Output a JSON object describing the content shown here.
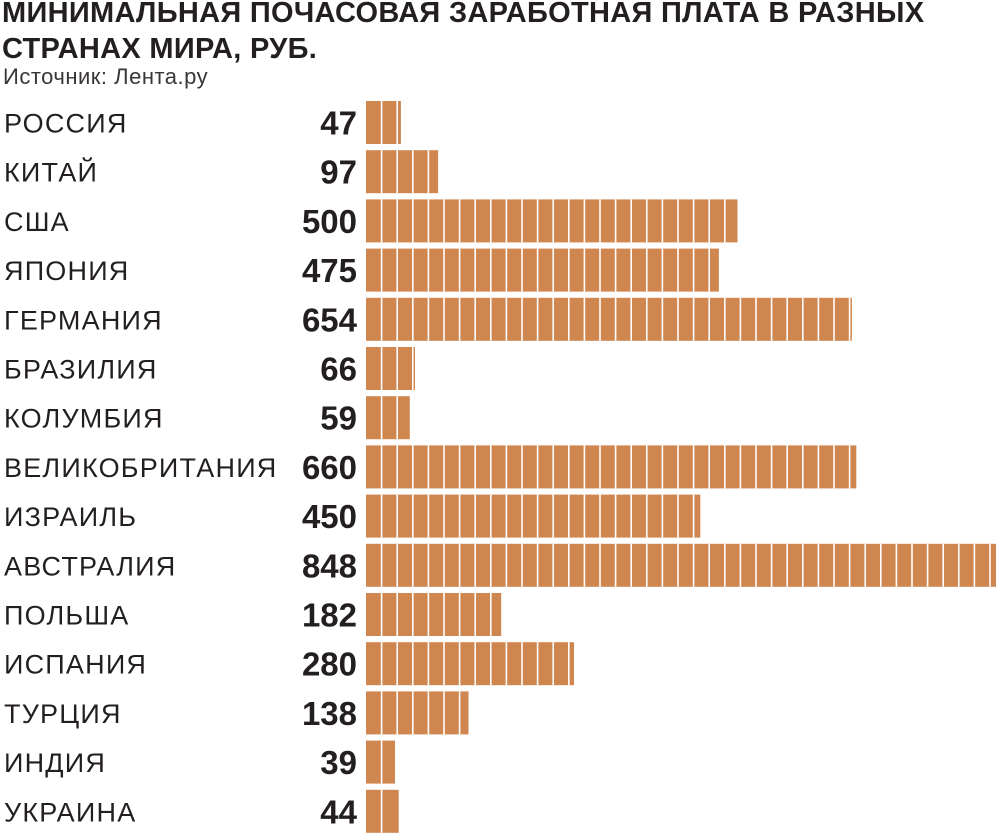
{
  "header": {
    "title": "МИНИМАЛЬНАЯ ПОЧАСОВАЯ ЗАРАБОТНАЯ ПЛАТА В РАЗНЫХ СТРАНАХ МИРА, РУБ.",
    "source": "Источник: Лента.ру"
  },
  "colors": {
    "bar": "#d0864f",
    "text": "#231f20",
    "background": "#ffffff"
  },
  "chart_data": {
    "type": "bar",
    "orientation": "horizontal",
    "title": "МИНИМАЛЬНАЯ ПОЧАСОВАЯ ЗАРАБОТНАЯ ПЛАТА В РАЗНЫХ СТРАНАХ МИРА, РУБ.",
    "categories": [
      "РОССИЯ",
      "КИТАЙ",
      "США",
      "ЯПОНИЯ",
      "ГЕРМАНИЯ",
      "БРАЗИЛИЯ",
      "КОЛУМБИЯ",
      "ВЕЛИКОБРИТАНИЯ",
      "ИЗРАИЛЬ",
      "АВСТРАЛИЯ",
      "ПОЛЬША",
      "ИСПАНИЯ",
      "ТУРЦИЯ",
      "ИНДИЯ",
      "УКРАИНА"
    ],
    "values": [
      47,
      97,
      500,
      475,
      654,
      66,
      59,
      660,
      450,
      848,
      182,
      280,
      138,
      39,
      44
    ],
    "xlabel": "",
    "ylabel": "",
    "xlim": [
      0,
      848
    ],
    "grid": false,
    "legend": "none",
    "value_labels": true
  }
}
